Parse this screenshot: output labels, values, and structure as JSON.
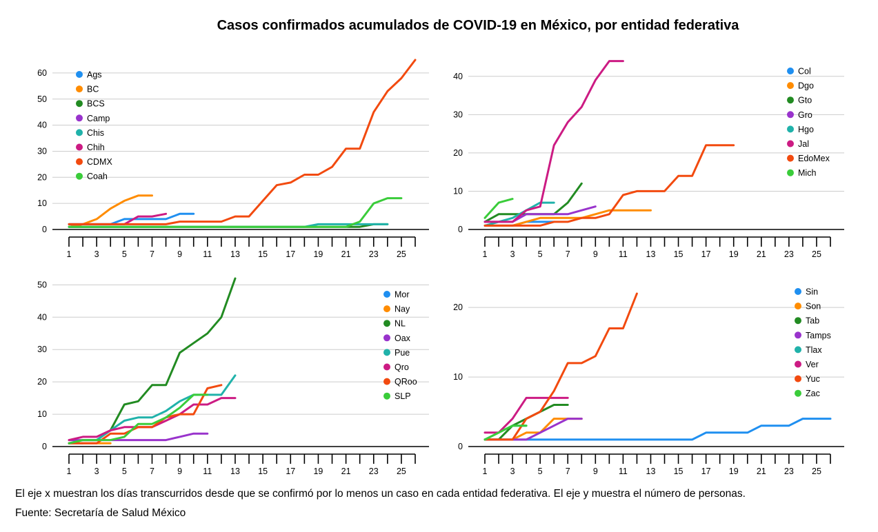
{
  "title": "Casos confirmados acumulados de COVID-19 en México, por entidad federativa",
  "footnote": "El eje x muestran los días transcurridos desde que se confirmó por lo menos un caso en cada entidad federativa. El eje y muestra el número de personas.",
  "source": "Fuente: Secretaría de Salud México",
  "chart_data": [
    {
      "type": "line",
      "xlim": [
        1,
        26
      ],
      "x_ticks": [
        1,
        3,
        5,
        7,
        9,
        11,
        13,
        15,
        17,
        19,
        21,
        23,
        25
      ],
      "ylim": [
        0,
        65
      ],
      "y_ticks": [
        0,
        10,
        20,
        30,
        40,
        50,
        60
      ],
      "grid": true,
      "legend_position": "top-left",
      "series": [
        {
          "name": "Ags",
          "color": "#1f8ff0",
          "values": [
            2,
            2,
            2,
            2,
            4,
            4,
            4,
            4,
            6,
            6
          ]
        },
        {
          "name": "BC",
          "color": "#ff8c00",
          "values": [
            1,
            2,
            4,
            8,
            11,
            13,
            13
          ]
        },
        {
          "name": "BCS",
          "color": "#228b22",
          "values": [
            1,
            1,
            1,
            1,
            1,
            1,
            1,
            1,
            1,
            1,
            1,
            1,
            1,
            1,
            1,
            1,
            1,
            1,
            1,
            1,
            1,
            1,
            2,
            2
          ]
        },
        {
          "name": "Camp",
          "color": "#9933cc",
          "values": [
            1,
            1,
            1,
            1
          ]
        },
        {
          "name": "Chis",
          "color": "#20b2aa",
          "values": [
            1,
            1,
            1,
            1,
            1,
            1,
            1,
            1,
            1,
            1,
            1,
            1,
            1,
            1,
            1,
            1,
            1,
            1,
            2,
            2,
            2,
            2,
            2,
            2
          ]
        },
        {
          "name": "Chih",
          "color": "#cc1b83",
          "values": [
            2,
            2,
            2,
            2,
            2,
            5,
            5,
            6
          ]
        },
        {
          "name": "CDMX",
          "color": "#f24a0f",
          "values": [
            2,
            2,
            2,
            2,
            2,
            2,
            2,
            2,
            3,
            3,
            3,
            3,
            5,
            5,
            11,
            17,
            18,
            21,
            21,
            24,
            31,
            31,
            45,
            53,
            58,
            65
          ]
        },
        {
          "name": "Coah",
          "color": "#3acc3a",
          "values": [
            1,
            1,
            1,
            1,
            1,
            1,
            1,
            1,
            1,
            1,
            1,
            1,
            1,
            1,
            1,
            1,
            1,
            1,
            1,
            1,
            1,
            3,
            10,
            12,
            12
          ]
        }
      ]
    },
    {
      "type": "line",
      "xlim": [
        1,
        26
      ],
      "x_ticks": [
        1,
        3,
        5,
        7,
        9,
        11,
        13,
        15,
        17,
        19,
        21,
        23,
        25
      ],
      "ylim": [
        0,
        45
      ],
      "y_ticks": [
        0,
        10,
        20,
        30,
        40
      ],
      "grid": true,
      "legend_position": "top-right",
      "series": [
        {
          "name": "Col",
          "color": "#1f8ff0",
          "values": [
            1,
            1,
            1,
            2,
            2,
            2
          ]
        },
        {
          "name": "Dgo",
          "color": "#ff8c00",
          "values": [
            1,
            1,
            1,
            2,
            3,
            3,
            3,
            3,
            4,
            5,
            5,
            5,
            5
          ]
        },
        {
          "name": "Gto",
          "color": "#228b22",
          "values": [
            2,
            4,
            4,
            4,
            4,
            4,
            7,
            12
          ]
        },
        {
          "name": "Gro",
          "color": "#9933cc",
          "values": [
            2,
            2,
            2,
            4,
            4,
            4,
            4,
            5,
            6
          ]
        },
        {
          "name": "Hgo",
          "color": "#20b2aa",
          "values": [
            1,
            2,
            3,
            5,
            7,
            7
          ]
        },
        {
          "name": "Jal",
          "color": "#cc1b83",
          "values": [
            2,
            2,
            2,
            5,
            6,
            22,
            28,
            32,
            39,
            44,
            44
          ]
        },
        {
          "name": "EdoMex",
          "color": "#f24a0f",
          "values": [
            1,
            1,
            1,
            1,
            1,
            2,
            2,
            3,
            3,
            4,
            9,
            10,
            10,
            10,
            14,
            14,
            22,
            22,
            22
          ]
        },
        {
          "name": "Mich",
          "color": "#3acc3a",
          "values": [
            3,
            7,
            8
          ]
        }
      ]
    },
    {
      "type": "line",
      "xlim": [
        1,
        26
      ],
      "x_ticks": [
        1,
        3,
        5,
        7,
        9,
        11,
        13,
        15,
        17,
        19,
        21,
        23,
        25
      ],
      "ylim": [
        0,
        52
      ],
      "y_ticks": [
        0,
        10,
        20,
        30,
        40,
        50
      ],
      "grid": true,
      "legend_position": "top-right",
      "series": [
        {
          "name": "Mor",
          "color": "#1f8ff0",
          "values": [
            1,
            1
          ]
        },
        {
          "name": "Nay",
          "color": "#ff8c00",
          "values": [
            1,
            1,
            1,
            1
          ]
        },
        {
          "name": "NL",
          "color": "#228b22",
          "values": [
            1,
            2,
            2,
            5,
            13,
            14,
            19,
            19,
            29,
            32,
            35,
            40,
            52
          ]
        },
        {
          "name": "Oax",
          "color": "#9933cc",
          "values": [
            2,
            2,
            2,
            2,
            2,
            2,
            2,
            2,
            3,
            4,
            4
          ]
        },
        {
          "name": "Pue",
          "color": "#20b2aa",
          "values": [
            1,
            2,
            2,
            5,
            8,
            9,
            9,
            11,
            14,
            16,
            16,
            16,
            22
          ]
        },
        {
          "name": "Qro",
          "color": "#cc1b83",
          "values": [
            2,
            3,
            3,
            5,
            6,
            6,
            6,
            8,
            10,
            13,
            13,
            15,
            15
          ]
        },
        {
          "name": "QRoo",
          "color": "#f24a0f",
          "values": [
            1,
            1,
            1,
            4,
            4,
            6,
            6,
            9,
            10,
            10,
            18,
            19
          ]
        },
        {
          "name": "SLP",
          "color": "#3acc3a",
          "values": [
            1,
            2,
            2,
            2,
            3,
            7,
            7,
            9,
            12,
            16,
            16
          ]
        }
      ]
    },
    {
      "type": "line",
      "xlim": [
        1,
        26
      ],
      "x_ticks": [
        1,
        3,
        5,
        7,
        9,
        11,
        13,
        15,
        17,
        19,
        21,
        23,
        25
      ],
      "ylim": [
        0,
        22
      ],
      "y_ticks": [
        0,
        10,
        20
      ],
      "grid": true,
      "legend_position": "top-right",
      "series": [
        {
          "name": "Sin",
          "color": "#1f8ff0",
          "values": [
            1,
            1,
            1,
            1,
            1,
            1,
            1,
            1,
            1,
            1,
            1,
            1,
            1,
            1,
            1,
            1,
            2,
            2,
            2,
            2,
            3,
            3,
            3,
            4,
            4,
            4
          ]
        },
        {
          "name": "Son",
          "color": "#ff8c00",
          "values": [
            1,
            1,
            1,
            2,
            2,
            4,
            4,
            4
          ]
        },
        {
          "name": "Tab",
          "color": "#228b22",
          "values": [
            1,
            1,
            3,
            4,
            5,
            6,
            6
          ]
        },
        {
          "name": "Tamps",
          "color": "#9933cc",
          "values": [
            1,
            1,
            1,
            1,
            2,
            3,
            4,
            4
          ]
        },
        {
          "name": "Tlax",
          "color": "#20b2aa",
          "values": [
            1,
            2,
            3,
            3
          ]
        },
        {
          "name": "Ver",
          "color": "#cc1b83",
          "values": [
            2,
            2,
            4,
            7,
            7,
            7,
            7
          ]
        },
        {
          "name": "Yuc",
          "color": "#f24a0f",
          "values": [
            1,
            1,
            1,
            4,
            5,
            8,
            12,
            12,
            13,
            17,
            17,
            22
          ]
        },
        {
          "name": "Zac",
          "color": "#3acc3a",
          "values": [
            1,
            2,
            3,
            3
          ]
        }
      ]
    }
  ]
}
